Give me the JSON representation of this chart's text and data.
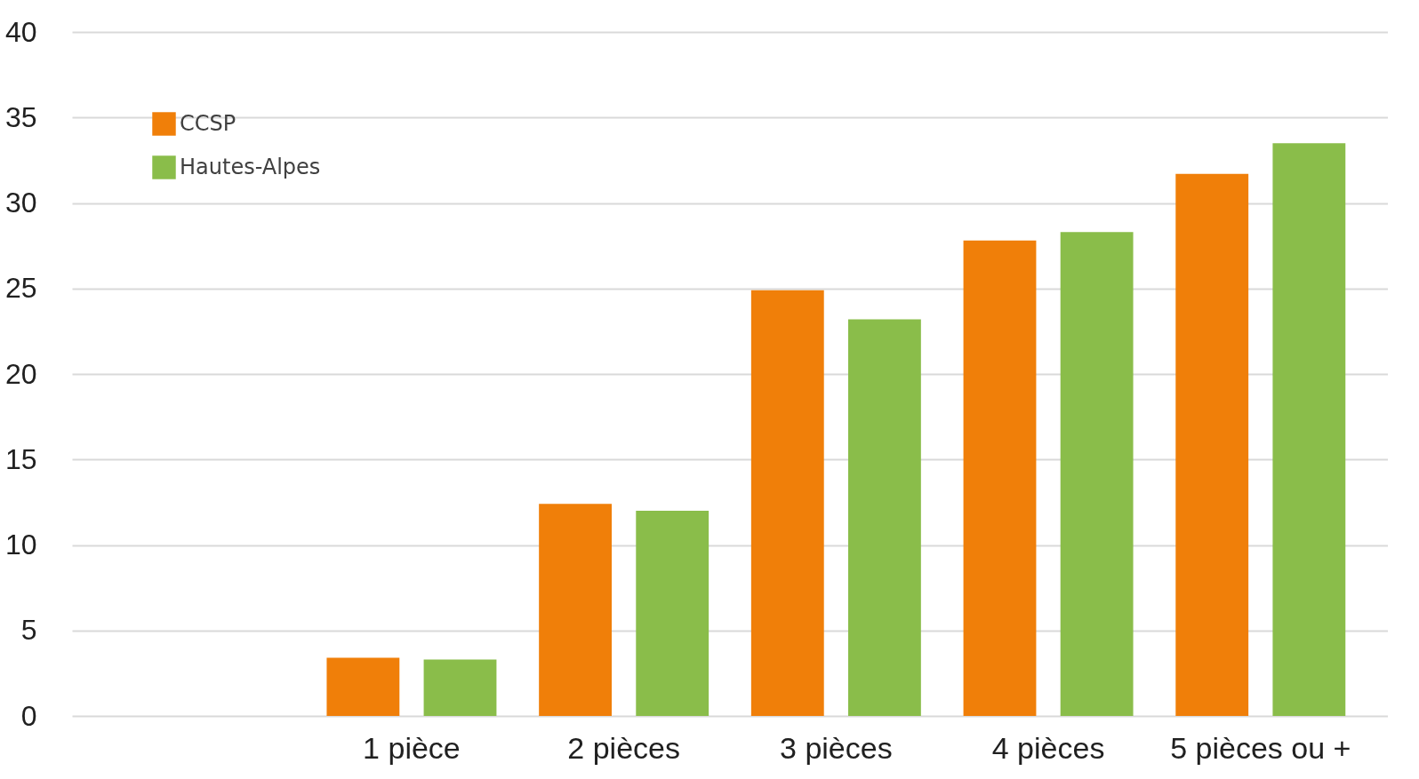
{
  "chart_data": {
    "type": "bar",
    "categories": [
      null,
      "1 pièce",
      "2 pièces",
      "3 pièces",
      "4 pièces",
      "5 pièces ou +"
    ],
    "series": [
      {
        "name": "CCSP",
        "color": "#f07f09",
        "values": [
          null,
          3.4,
          12.4,
          24.9,
          27.8,
          31.7
        ]
      },
      {
        "name": "Hautes-Alpes",
        "color": "#8abd4a",
        "values": [
          null,
          3.3,
          12.0,
          23.2,
          28.3,
          33.5
        ]
      }
    ],
    "ylim": [
      0,
      40
    ],
    "yticks": [
      0,
      5,
      10,
      15,
      20,
      25,
      30,
      35,
      40
    ],
    "grid": "y",
    "legend": "top left"
  }
}
